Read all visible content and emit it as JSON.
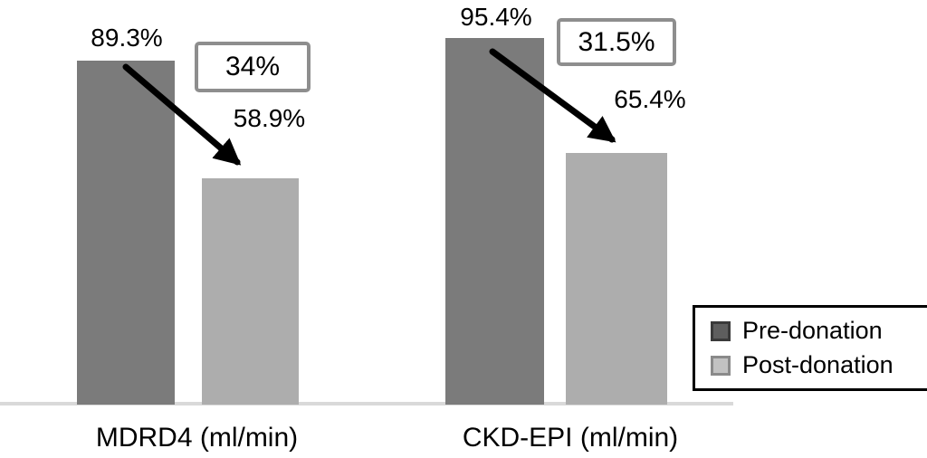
{
  "chart_data": {
    "type": "bar",
    "categories": [
      "MDRD4 (ml/min)",
      "CKD-EPI (ml/min)"
    ],
    "series": [
      {
        "name": "Pre-donation",
        "values": [
          89.3,
          95.4
        ],
        "color": "#7b7b7b"
      },
      {
        "name": "Post-donation",
        "values": [
          58.9,
          65.4
        ],
        "color": "#adadad"
      }
    ],
    "value_suffix": "%",
    "title": "",
    "xlabel": "",
    "ylabel": "",
    "grid": false,
    "axes_hidden": true,
    "legend_position": "bottom-right",
    "annotations": [
      {
        "category": "MDRD4 (ml/min)",
        "boxed_text": "34%"
      },
      {
        "category": "CKD-EPI (ml/min)",
        "boxed_text": "31.5%"
      }
    ]
  },
  "groups": [
    {
      "axis_label": "MDRD4 (ml/min)",
      "pre_label": "89.3%",
      "post_label": "58.9%",
      "drop_box_label": "34%"
    },
    {
      "axis_label": "CKD-EPI (ml/min)",
      "pre_label": "95.4%",
      "post_label": "65.4%",
      "drop_box_label": "31.5%"
    }
  ],
  "legend": {
    "items": [
      {
        "label": "Pre-donation",
        "swatch_color": "#5e5e5e"
      },
      {
        "label": "Post-donation",
        "swatch_color": "#c2c2c2"
      }
    ]
  },
  "colors": {
    "pre_bar": "#7b7b7b",
    "post_bar": "#adadad",
    "baseline": "#d9d9d9",
    "annotation_box_border": "#8e8e8e",
    "arrow": "#000000",
    "text": "#000000",
    "legend_border": "#000000"
  }
}
